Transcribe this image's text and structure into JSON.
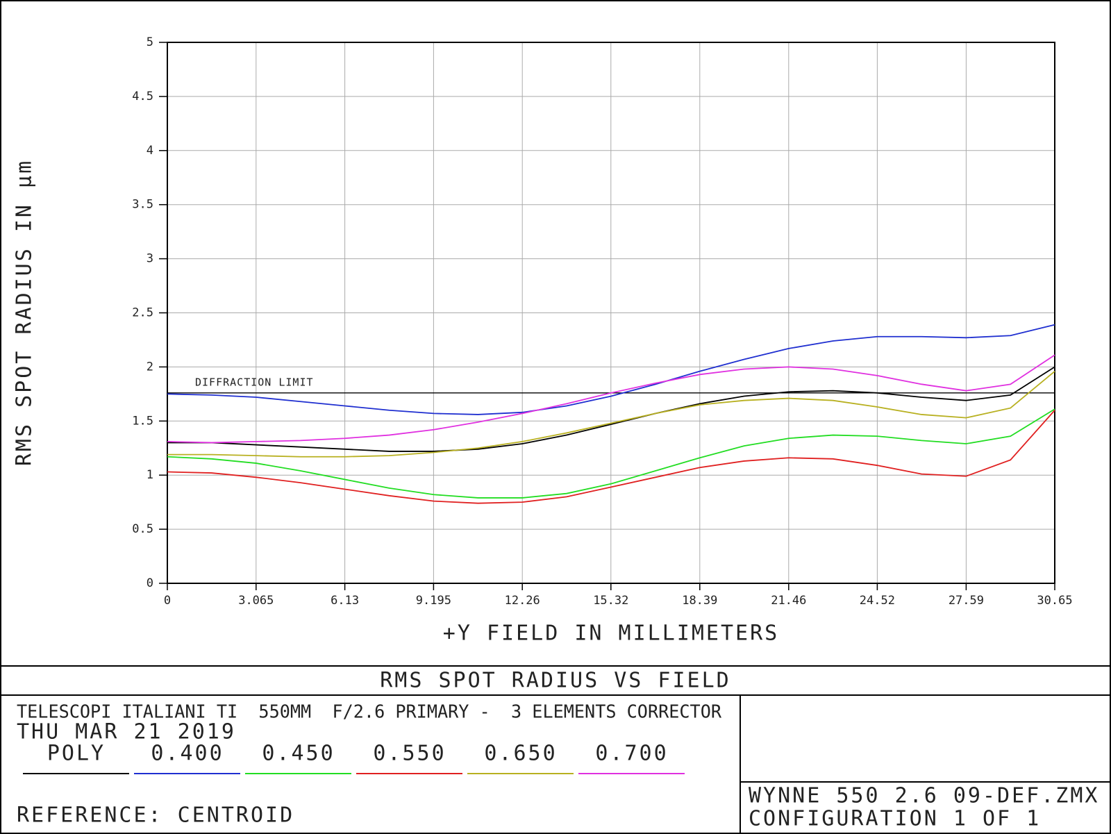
{
  "chart_data": {
    "type": "line",
    "title": "RMS SPOT RADIUS VS FIELD",
    "x_label": "+Y FIELD IN MILLIMETERS",
    "y_label": "RMS SPOT RADIUS IN µm",
    "x": [
      0,
      1.53,
      3.07,
      4.6,
      6.13,
      7.66,
      9.2,
      10.73,
      12.26,
      13.79,
      15.33,
      16.86,
      18.39,
      19.92,
      21.46,
      22.99,
      24.52,
      26.05,
      27.59,
      29.12,
      30.65
    ],
    "series": [
      {
        "name": "POLY",
        "color": "#000000",
        "values": [
          1.3,
          1.3,
          1.28,
          1.26,
          1.24,
          1.22,
          1.22,
          1.24,
          1.29,
          1.37,
          1.47,
          1.57,
          1.66,
          1.73,
          1.77,
          1.78,
          1.76,
          1.72,
          1.69,
          1.74,
          2.0
        ]
      },
      {
        "name": "0.400",
        "color": "#1f2fd0",
        "values": [
          1.75,
          1.74,
          1.72,
          1.68,
          1.64,
          1.6,
          1.57,
          1.56,
          1.58,
          1.64,
          1.73,
          1.84,
          1.96,
          2.07,
          2.17,
          2.24,
          2.28,
          2.28,
          2.27,
          2.29,
          2.39
        ]
      },
      {
        "name": "0.450",
        "color": "#22dd22",
        "values": [
          1.17,
          1.15,
          1.11,
          1.04,
          0.96,
          0.88,
          0.82,
          0.79,
          0.79,
          0.83,
          0.92,
          1.04,
          1.16,
          1.27,
          1.34,
          1.37,
          1.36,
          1.32,
          1.29,
          1.36,
          1.61
        ]
      },
      {
        "name": "0.550",
        "color": "#e02020",
        "values": [
          1.03,
          1.02,
          0.98,
          0.93,
          0.87,
          0.81,
          0.76,
          0.74,
          0.75,
          0.8,
          0.89,
          0.98,
          1.07,
          1.13,
          1.16,
          1.15,
          1.09,
          1.01,
          0.99,
          1.14,
          1.6
        ]
      },
      {
        "name": "0.650",
        "color": "#b8b020",
        "values": [
          1.19,
          1.19,
          1.18,
          1.17,
          1.17,
          1.18,
          1.21,
          1.25,
          1.31,
          1.39,
          1.48,
          1.57,
          1.65,
          1.69,
          1.71,
          1.69,
          1.63,
          1.56,
          1.53,
          1.62,
          1.96
        ]
      },
      {
        "name": "0.700",
        "color": "#e030e0",
        "values": [
          1.31,
          1.3,
          1.31,
          1.32,
          1.34,
          1.37,
          1.42,
          1.49,
          1.57,
          1.66,
          1.76,
          1.85,
          1.93,
          1.98,
          2.0,
          1.98,
          1.92,
          1.84,
          1.78,
          1.84,
          2.11
        ]
      }
    ],
    "xlim": [
      0,
      30.65
    ],
    "xticks": [
      0,
      3.065,
      6.13,
      9.195,
      12.26,
      15.32,
      18.39,
      21.46,
      24.52,
      27.59,
      30.65
    ],
    "ylim": [
      0,
      5
    ],
    "yticks": [
      0,
      0.5,
      1,
      1.5,
      2,
      2.5,
      3,
      3.5,
      4,
      4.5,
      5
    ],
    "grid": true,
    "annotations": [
      {
        "text": "DIFFRACTION LIMIT",
        "y": 1.76
      }
    ],
    "info": {
      "lens": "TELESCOPI ITALIANI TI  550MM  F/2.6 PRIMARY -  3 ELEMENTS CORRECTOR",
      "date": "THU MAR 21 2019",
      "reference": "REFERENCE: CENTROID",
      "file": "WYNNE 550 2.6 09-DEF.ZMX",
      "configuration": "CONFIGURATION 1 OF 1"
    }
  }
}
